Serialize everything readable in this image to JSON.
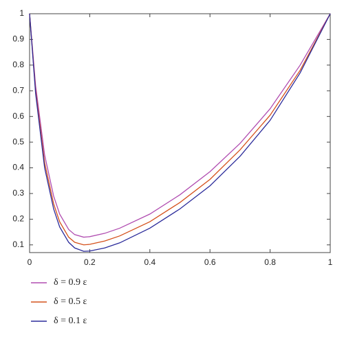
{
  "chart_data": {
    "type": "line",
    "x": [
      0,
      0.02,
      0.05,
      0.08,
      0.1,
      0.13,
      0.15,
      0.18,
      0.2,
      0.25,
      0.3,
      0.4,
      0.5,
      0.6,
      0.7,
      0.8,
      0.9,
      1
    ],
    "series": [
      {
        "name": "δ = 0.9 ε",
        "color": "#b04cb0",
        "values": [
          1,
          0.72,
          0.45,
          0.29,
          0.22,
          0.16,
          0.14,
          0.13,
          0.132,
          0.145,
          0.165,
          0.22,
          0.295,
          0.385,
          0.495,
          0.63,
          0.8,
          1
        ]
      },
      {
        "name": "δ = 0.5 ε",
        "color": "#d4501a",
        "values": [
          1,
          0.7,
          0.42,
          0.26,
          0.19,
          0.13,
          0.11,
          0.1,
          0.102,
          0.115,
          0.135,
          0.19,
          0.265,
          0.355,
          0.47,
          0.605,
          0.78,
          1
        ]
      },
      {
        "name": "δ = 0.1 ε",
        "color": "#2a2a9a",
        "values": [
          1,
          0.69,
          0.4,
          0.24,
          0.17,
          0.11,
          0.088,
          0.075,
          0.076,
          0.088,
          0.108,
          0.165,
          0.24,
          0.33,
          0.445,
          0.585,
          0.77,
          1
        ]
      }
    ],
    "xlim": [
      0,
      1
    ],
    "xticks": [
      0,
      0.2,
      0.4,
      0.6,
      0.8,
      1
    ],
    "ylim": [
      0.07,
      1
    ],
    "yticks": [
      0.1,
      0.2,
      0.3,
      0.4,
      0.5,
      0.6,
      0.7,
      0.8,
      0.9,
      1
    ]
  }
}
